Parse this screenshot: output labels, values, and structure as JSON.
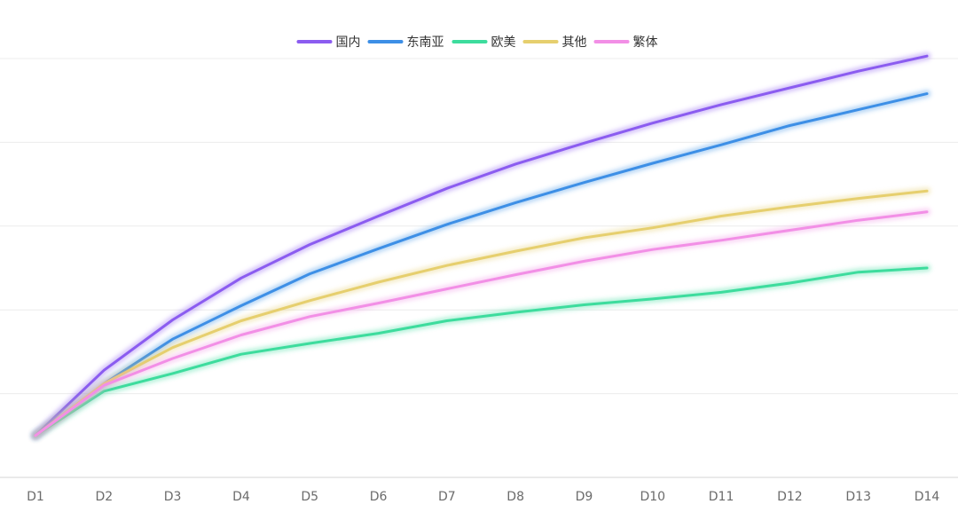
{
  "chart_data": {
    "type": "line",
    "title": "",
    "xlabel": "",
    "ylabel": "",
    "grid": true,
    "legend_placement": "top-center",
    "categories": [
      "D1",
      "D2",
      "D3",
      "D4",
      "D5",
      "D6",
      "D7",
      "D8",
      "D9",
      "D10",
      "D11",
      "D12",
      "D13",
      "D14"
    ],
    "ylim": [
      0,
      5
    ],
    "series": [
      {
        "name": "国内",
        "color": "#8b5cf0",
        "values": [
          0.5,
          1.28,
          1.88,
          2.38,
          2.78,
          3.12,
          3.45,
          3.74,
          3.99,
          4.23,
          4.45,
          4.65,
          4.85,
          5.03
        ]
      },
      {
        "name": "东南亚",
        "color": "#3d8fe6",
        "values": [
          0.5,
          1.12,
          1.65,
          2.05,
          2.43,
          2.73,
          3.02,
          3.28,
          3.52,
          3.75,
          3.97,
          4.2,
          4.39,
          4.58
        ]
      },
      {
        "name": "欧美",
        "color": "#3ddc9d",
        "values": [
          0.5,
          1.03,
          1.24,
          1.47,
          1.6,
          1.72,
          1.87,
          1.97,
          2.06,
          2.13,
          2.21,
          2.32,
          2.45,
          2.5
        ]
      },
      {
        "name": "其他",
        "color": "#e6cf6e",
        "values": [
          0.5,
          1.12,
          1.55,
          1.87,
          2.11,
          2.33,
          2.53,
          2.7,
          2.86,
          2.98,
          3.12,
          3.23,
          3.33,
          3.42
        ]
      },
      {
        "name": "繁体",
        "color": "#f28fe6",
        "values": [
          0.5,
          1.1,
          1.42,
          1.7,
          1.92,
          2.08,
          2.25,
          2.42,
          2.58,
          2.72,
          2.83,
          2.95,
          3.07,
          3.17
        ]
      }
    ]
  }
}
